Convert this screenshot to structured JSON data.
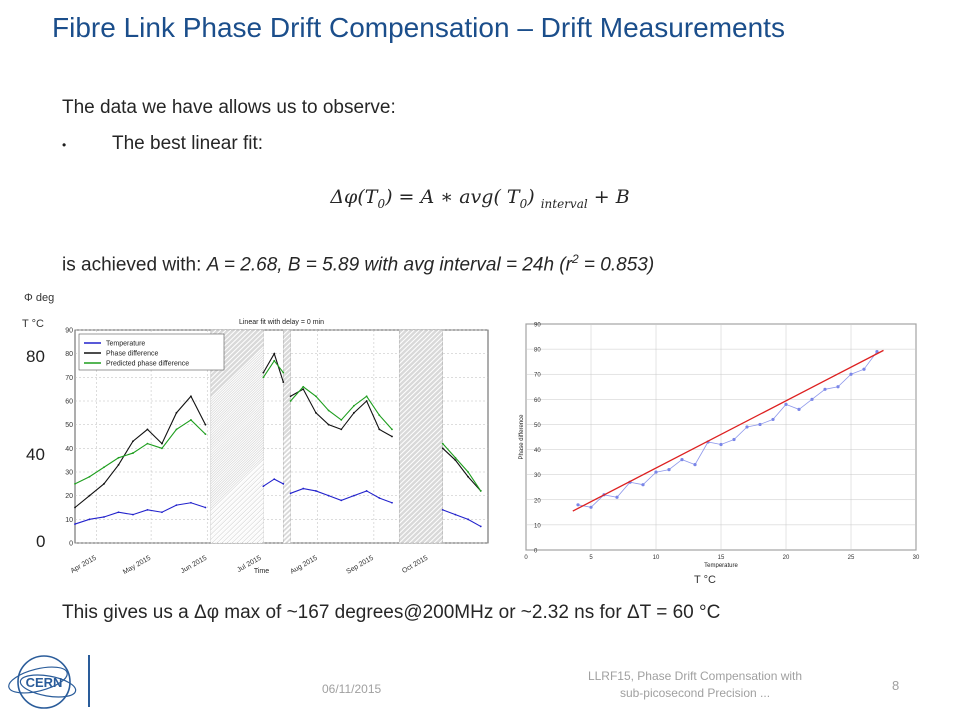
{
  "title": "Fibre Link Phase Drift Compensation – Drift Measurements",
  "intro": "The data we have allows us to observe:",
  "bullet_char": "•",
  "bullet_text": "The best linear fit:",
  "formula": {
    "lhs": "Δφ(T",
    "lhs_sub": "0",
    "mid": ") = A ∗ avg( T",
    "mid_sub": "0",
    "close": ")",
    "interval_sub": "interval",
    "rhs": "+ B"
  },
  "result_line": {
    "prefix": "is achieved with: ",
    "italic": "A = 2.68, B = 5.89 with avg interval = 24h (r",
    "sup": "2",
    "suffix": " = 0.853)"
  },
  "left_axis": {
    "phi_label": "Φ deg",
    "temp_label": "T °C",
    "ticks": [
      "80",
      "40",
      "0"
    ]
  },
  "right_axis_label": "T °C",
  "conclusion": "This gives us a Δφ max of ~167 degrees@200MHz or ~2.32 ns for ΔT = 60 °C",
  "footer": {
    "date": "06/11/2015",
    "conference_line1": "LLRF15, Phase Drift Compensation with",
    "conference_line2": "sub-picosecond Precision ...",
    "page": "8",
    "logo_text": "CERN"
  },
  "colors": {
    "title": "#1b4e8b",
    "temperature": "#2222cc",
    "phase_difference": "#111111",
    "predicted": "#1e9e1e",
    "fit_line": "#dd2020",
    "scatter": "#7a86e8"
  },
  "chart_data": [
    {
      "type": "line",
      "title": "Linear fit with delay = 0 min",
      "xlabel": "Time",
      "ylabel": "",
      "ylim": [
        0,
        90
      ],
      "yticks": [
        "0",
        "10",
        "20",
        "30",
        "40",
        "50",
        "60",
        "70",
        "80",
        "90"
      ],
      "xticks": [
        "Apr 2015",
        "May 2015",
        "Jun 2015",
        "Jul 2015",
        "Aug 2015",
        "Sep 2015",
        "Oct 2015"
      ],
      "legend": [
        "Temperature",
        "Phase difference",
        "Predicted phase difference"
      ],
      "legend_position": "top-left",
      "grid": true,
      "gaps": [
        [
          "2015-06-03",
          "2015-07-02"
        ],
        [
          "2015-07-13",
          "2015-07-17"
        ],
        [
          "2015-09-15",
          "2015-10-09"
        ]
      ],
      "series": [
        {
          "name": "Temperature",
          "x": [
            "2015-03-20",
            "2015-03-28",
            "2015-04-05",
            "2015-04-13",
            "2015-04-21",
            "2015-04-29",
            "2015-05-07",
            "2015-05-15",
            "2015-05-23",
            "2015-05-31",
            "2015-07-02",
            "2015-07-08",
            "2015-07-13",
            "2015-07-17",
            "2015-07-24",
            "2015-07-31",
            "2015-08-07",
            "2015-08-14",
            "2015-08-21",
            "2015-08-28",
            "2015-09-04",
            "2015-09-11",
            "2015-10-09",
            "2015-10-16",
            "2015-10-23",
            "2015-10-30"
          ],
          "values": [
            8,
            10,
            11,
            13,
            12,
            14,
            13,
            16,
            17,
            15,
            24,
            27,
            25,
            21,
            23,
            22,
            20,
            18,
            20,
            22,
            19,
            17,
            14,
            12,
            10,
            7
          ]
        },
        {
          "name": "Phase difference",
          "x": [
            "2015-03-20",
            "2015-03-28",
            "2015-04-05",
            "2015-04-13",
            "2015-04-21",
            "2015-04-29",
            "2015-05-07",
            "2015-05-15",
            "2015-05-23",
            "2015-05-31",
            "2015-07-02",
            "2015-07-08",
            "2015-07-13",
            "2015-07-17",
            "2015-07-24",
            "2015-07-31",
            "2015-08-07",
            "2015-08-14",
            "2015-08-21",
            "2015-08-28",
            "2015-09-04",
            "2015-09-11",
            "2015-10-09",
            "2015-10-16",
            "2015-10-23",
            "2015-10-30"
          ],
          "values": [
            15,
            20,
            25,
            33,
            43,
            48,
            42,
            55,
            62,
            50,
            72,
            80,
            68,
            62,
            65,
            55,
            50,
            48,
            55,
            60,
            48,
            45,
            40,
            35,
            28,
            22
          ]
        },
        {
          "name": "Predicted phase difference",
          "x": [
            "2015-03-20",
            "2015-03-28",
            "2015-04-05",
            "2015-04-13",
            "2015-04-21",
            "2015-04-29",
            "2015-05-07",
            "2015-05-15",
            "2015-05-23",
            "2015-05-31",
            "2015-07-02",
            "2015-07-08",
            "2015-07-13",
            "2015-07-17",
            "2015-07-24",
            "2015-07-31",
            "2015-08-07",
            "2015-08-14",
            "2015-08-21",
            "2015-08-28",
            "2015-09-04",
            "2015-09-11",
            "2015-10-09",
            "2015-10-16",
            "2015-10-23",
            "2015-10-30"
          ],
          "values": [
            25,
            28,
            32,
            36,
            38,
            42,
            40,
            48,
            52,
            46,
            70,
            77,
            72,
            60,
            66,
            62,
            56,
            52,
            58,
            62,
            54,
            48,
            42,
            36,
            30,
            22
          ]
        }
      ]
    },
    {
      "type": "scatter",
      "xlabel": "Temperature",
      "ylabel": "Phase difference",
      "xlim": [
        0,
        30
      ],
      "ylim": [
        0,
        90
      ],
      "xticks": [
        "0",
        "5",
        "10",
        "15",
        "20",
        "25",
        "30"
      ],
      "yticks": [
        "0",
        "10",
        "20",
        "30",
        "40",
        "50",
        "60",
        "70",
        "80",
        "90"
      ],
      "grid": true,
      "series": [
        {
          "name": "",
          "x": [
            4,
            5,
            6,
            7,
            8,
            9,
            10,
            11,
            12,
            13,
            14,
            15,
            16,
            17,
            18,
            19,
            20,
            21,
            22,
            23,
            24,
            25,
            26,
            27
          ],
          "values": [
            18,
            17,
            22,
            21,
            27,
            26,
            31,
            32,
            36,
            34,
            43,
            42,
            44,
            49,
            50,
            52,
            58,
            56,
            60,
            64,
            65,
            70,
            72,
            79
          ]
        },
        {
          "name": "",
          "type": "fit",
          "x": [
            3.6,
            27.5
          ],
          "values": [
            15.5,
            79.5
          ]
        }
      ]
    }
  ]
}
